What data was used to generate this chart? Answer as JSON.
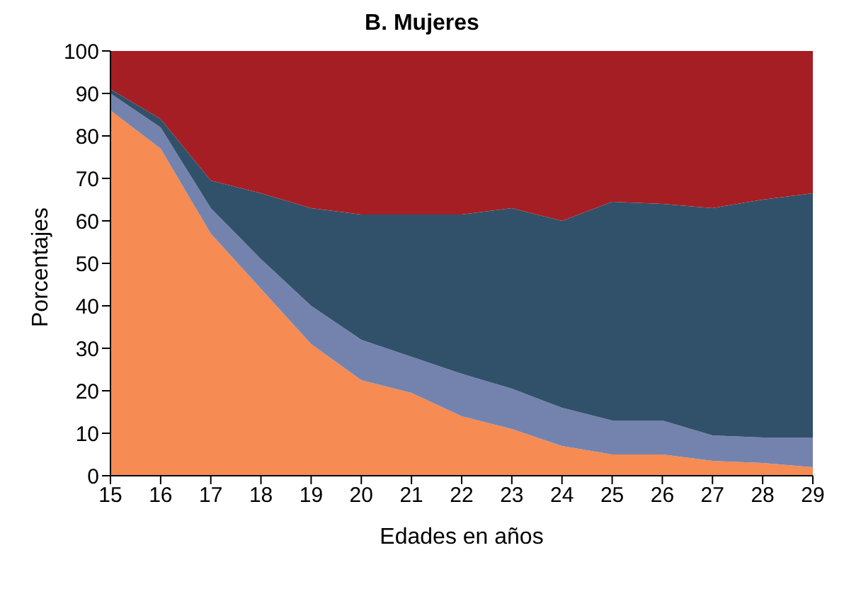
{
  "chart_data": {
    "type": "area",
    "stacked": true,
    "title": "B. Mujeres",
    "xlabel": "Edades en años",
    "ylabel": "Porcentajes",
    "x": [
      15,
      16,
      17,
      18,
      19,
      20,
      21,
      22,
      23,
      24,
      25,
      26,
      27,
      28,
      29
    ],
    "series": [
      {
        "color": "#f68b53",
        "values": [
          86,
          77,
          57,
          44,
          31,
          22.5,
          19.5,
          14,
          11,
          7,
          5,
          5,
          3.5,
          3,
          2
        ]
      },
      {
        "color": "#7483ad",
        "values": [
          4,
          5,
          6,
          7,
          9,
          9.5,
          8.5,
          10,
          9.5,
          9,
          8,
          8,
          6,
          6,
          7
        ]
      },
      {
        "color": "#31516a",
        "values": [
          1,
          2,
          6.5,
          15.5,
          23,
          29.5,
          33.5,
          37.5,
          42.5,
          44,
          51.5,
          51,
          53.5,
          56,
          57.5
        ]
      },
      {
        "color": "#a51e23",
        "values": [
          9,
          16,
          30.5,
          33.5,
          37,
          38.5,
          38.5,
          38.5,
          37,
          40,
          35.5,
          36,
          37,
          35,
          33.5
        ]
      }
    ],
    "xlim": [
      15,
      29
    ],
    "xticks": [
      15,
      16,
      17,
      18,
      19,
      20,
      21,
      22,
      23,
      24,
      25,
      26,
      27,
      28,
      29
    ],
    "ylim": [
      0,
      100
    ],
    "yticks": [
      0,
      10,
      20,
      30,
      40,
      50,
      60,
      70,
      80,
      90,
      100
    ],
    "grid": false,
    "legend": false
  }
}
